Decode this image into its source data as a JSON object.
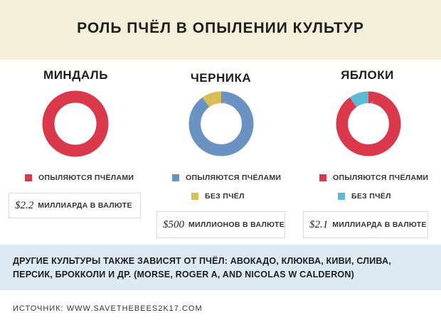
{
  "title": "РОЛЬ ПЧЁЛ В ОПЫЛЕНИИ КУЛЬТУР",
  "colors": {
    "pollinated": "#d9394b",
    "without_bees": "#d9bd55",
    "blue_series": "#6a93c3",
    "light_blue": "#5cbad6"
  },
  "chart_data": [
    {
      "type": "pie",
      "title": "МИНДАЛЬ",
      "series": [
        {
          "name": "ОПЫЛЯЮТСЯ ПЧЁЛАМИ",
          "value": 100,
          "color": "#d9394b"
        }
      ],
      "value_number": "$2.2",
      "value_text": "МИЛЛИАРДА В ВАЛЮТЕ"
    },
    {
      "type": "pie",
      "title": "ЧЕРНИКА",
      "series": [
        {
          "name": "ОПЫЛЯЮТСЯ ПЧЁЛАМИ",
          "value": 90,
          "color": "#6a93c3"
        },
        {
          "name": "БЕЗ ПЧЁЛ",
          "value": 10,
          "color": "#d9bd55"
        }
      ],
      "value_number": "$500",
      "value_text": "МИЛЛИОНОВ В ВАЛЮТЕ"
    },
    {
      "type": "pie",
      "title": "ЯБЛОКИ",
      "series": [
        {
          "name": "ОПЫЛЯЮТСЯ ПЧЁЛАМИ",
          "value": 90,
          "color": "#d9394b"
        },
        {
          "name": "БЕЗ ПЧЁЛ",
          "value": 10,
          "color": "#5cbad6"
        }
      ],
      "value_number": "$2.1",
      "value_text": "МИЛЛИАРДА В ВАЛЮТЕ"
    }
  ],
  "note": "ДРУГИЕ КУЛЬТУРЫ ТАКЖЕ ЗАВИСЯТ ОТ ПЧЁЛ: АВОКАДО, КЛЮКВА, КИВИ, СЛИВА, ПЕРСИК, БРОККОЛИ И ДР. (MORSE, ROGER A, AND NICOLAS W CALDERON)",
  "source": "ИСТОЧНИК: WWW.SAVETHEBEES2K17.COM"
}
